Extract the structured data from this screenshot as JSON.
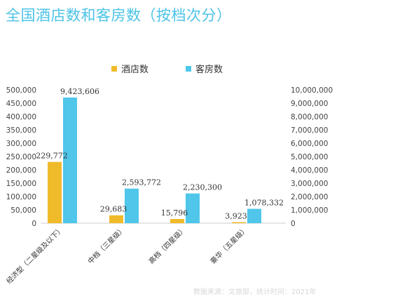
{
  "chart_data": {
    "type": "bar",
    "title": "全国酒店数和客房数（按档次分）",
    "categories": [
      "经济型（二星级及以下）",
      "中档（三星级）",
      "高档（四星级）",
      "豪华（五星级）"
    ],
    "series": [
      {
        "name": "酒店数",
        "axis": "left",
        "color": "#f0bb2b",
        "values": [
          229772,
          29683,
          15796,
          3923
        ],
        "labels": [
          "229,772",
          "29,683",
          "15,796",
          "3,923"
        ]
      },
      {
        "name": "客房数",
        "axis": "right",
        "color": "#4fc6ea",
        "values": [
          9423606,
          2593772,
          2230300,
          1078332
        ],
        "labels": [
          "9,423,606",
          "2,593,772",
          "2,230,300",
          "1,078,332"
        ]
      }
    ],
    "y_left": {
      "ylim": [
        0,
        500000
      ],
      "ticks": [
        "0",
        "50,000",
        "100,000",
        "150,000",
        "200,000",
        "250,000",
        "300,000",
        "350,000",
        "400,000",
        "450,000",
        "500,000"
      ]
    },
    "y_right": {
      "ylim": [
        0,
        10000000
      ],
      "ticks": [
        "0",
        "1,000,000",
        "2,000,000",
        "3,000,000",
        "4,000,000",
        "5,000,000",
        "6,000,000",
        "7,000,000",
        "8,000,000",
        "9,000,000",
        "10,000,000"
      ]
    },
    "legend_position": "top-center",
    "grid": false,
    "source": "数据来源：文旅部，统计时间：2021年"
  }
}
